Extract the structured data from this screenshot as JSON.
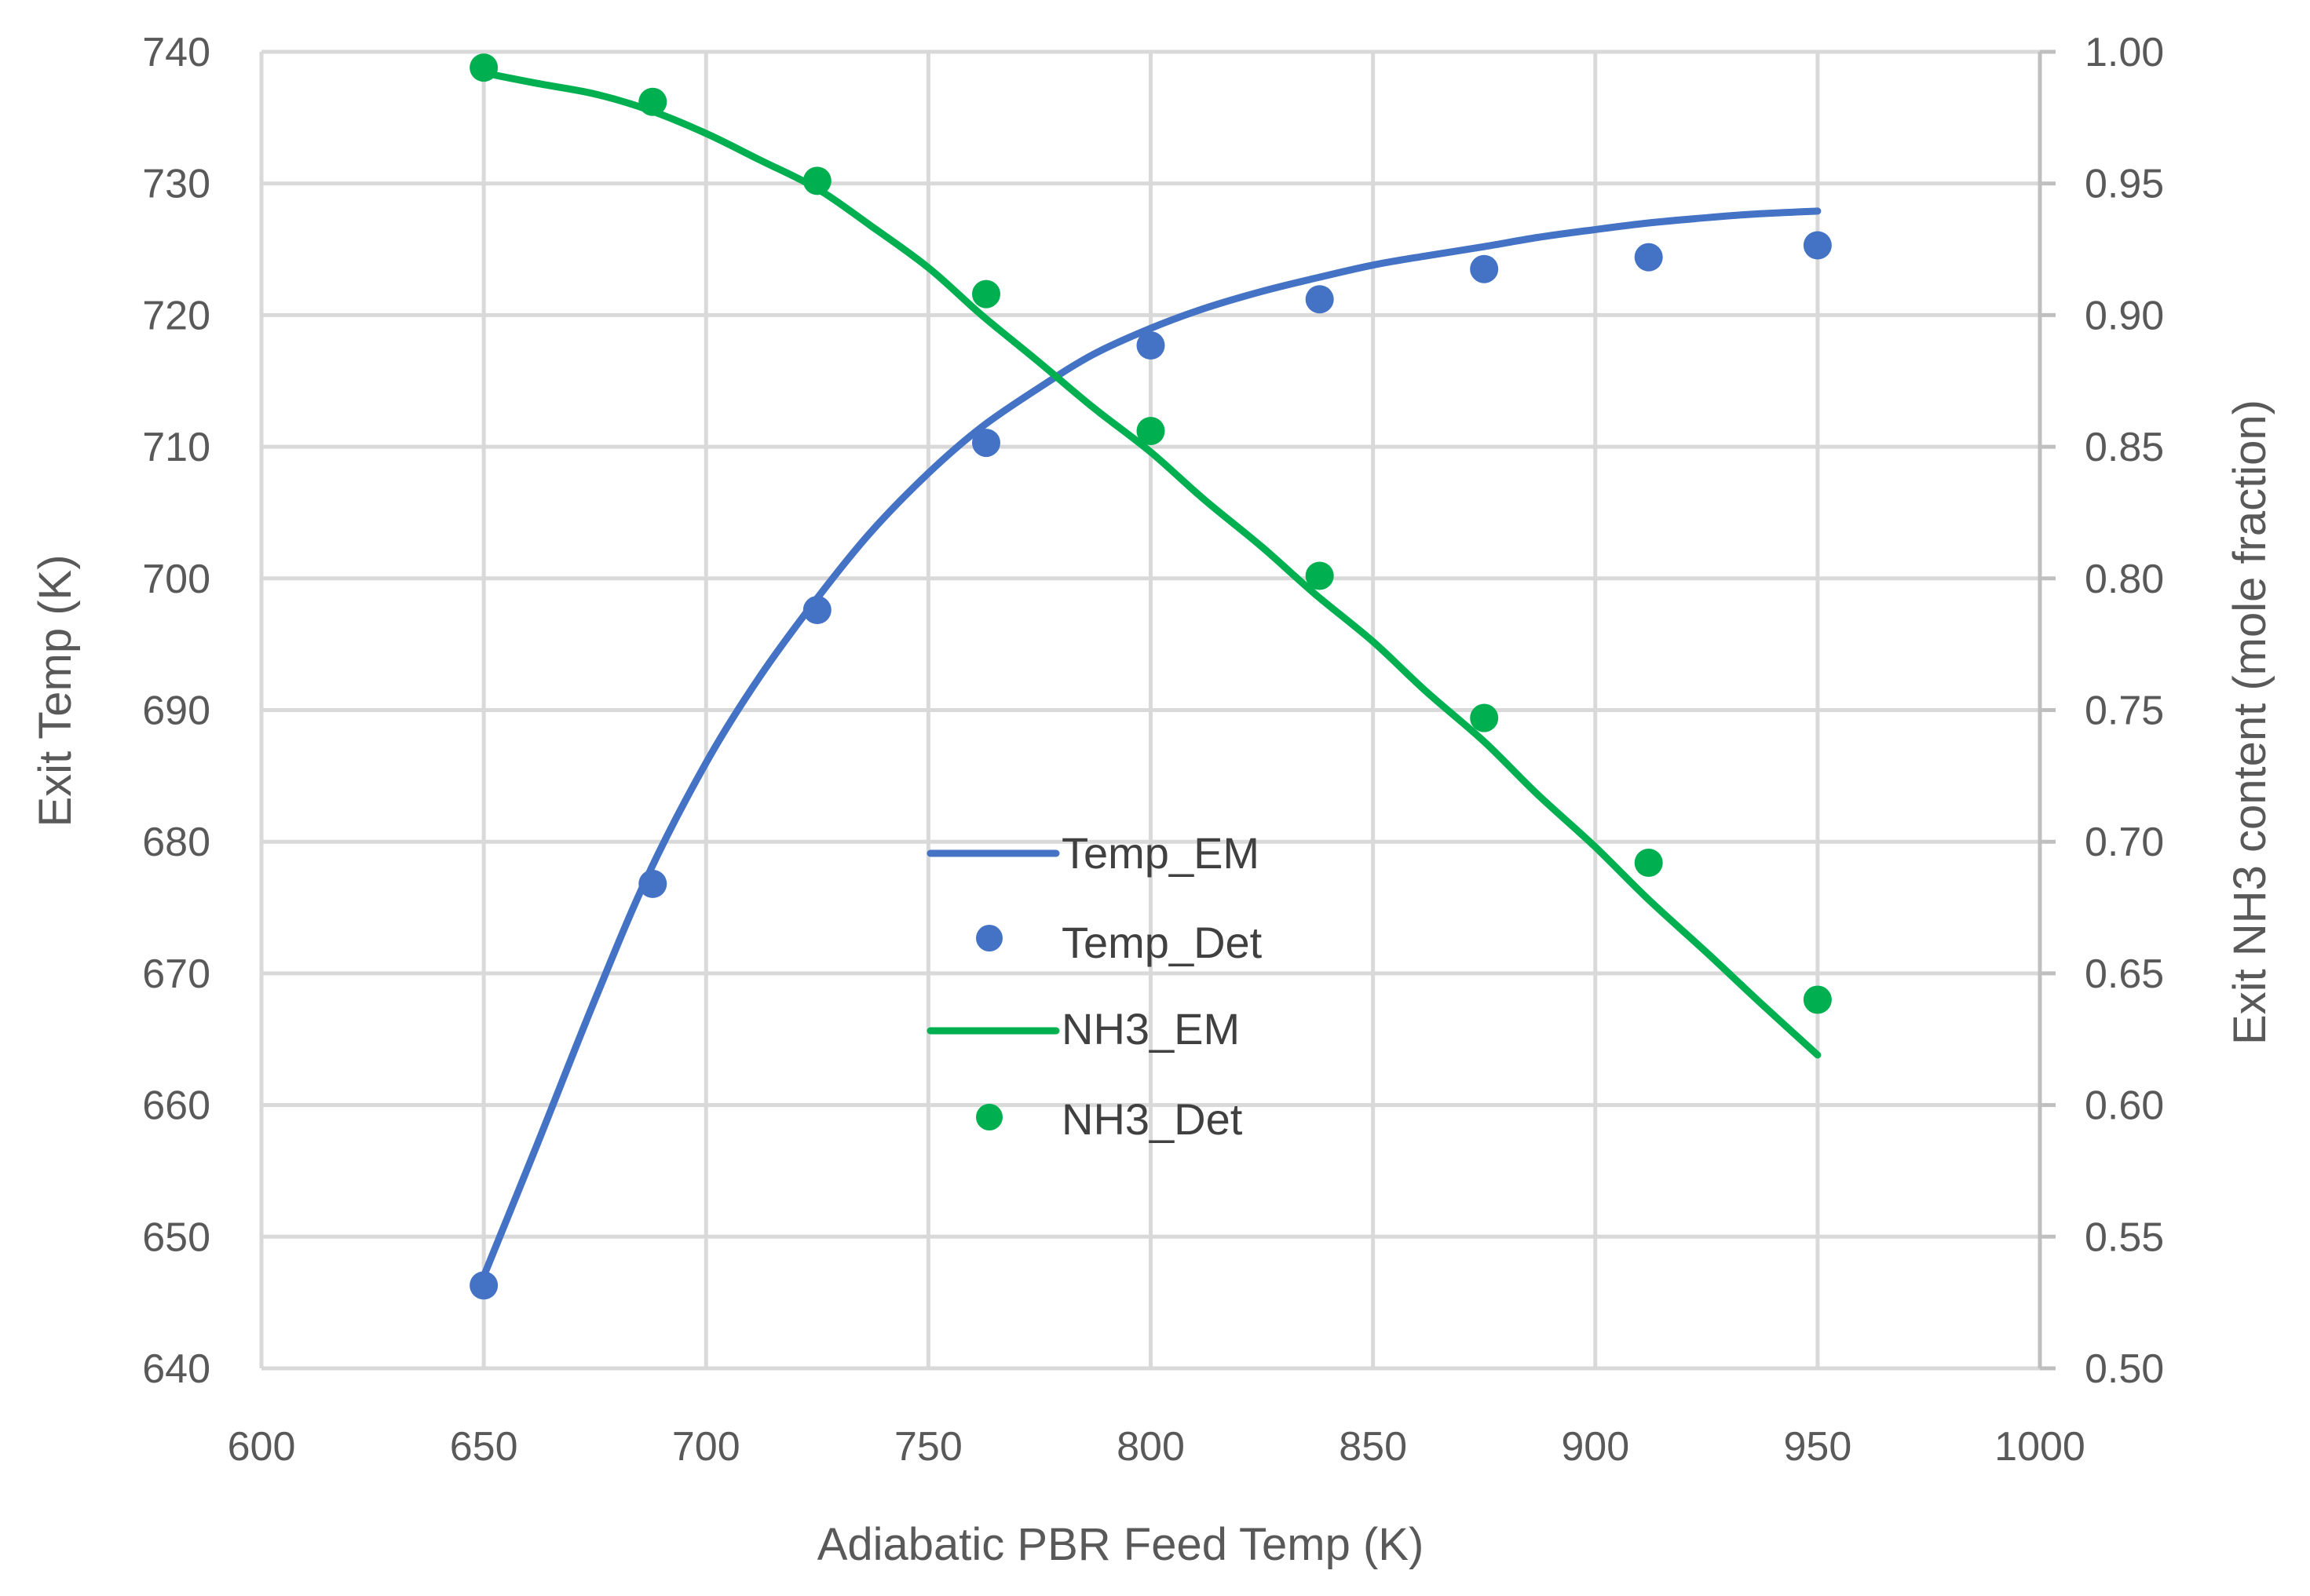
{
  "chart_data": {
    "type": "line",
    "title": "",
    "xlabel": "Adiabatic PBR Feed Temp (K)",
    "ylabel_left": "Exit Temp (K)",
    "ylabel_right": "Exit NH3 content  (mole fraction)",
    "xlim": [
      600,
      1000
    ],
    "ylim_left": [
      640,
      740
    ],
    "ylim_right": [
      0.5,
      1.0
    ],
    "x_ticks": [
      "600",
      "650",
      "700",
      "750",
      "800",
      "850",
      "900",
      "950",
      "1000"
    ],
    "y_left_ticks": [
      "640",
      "650",
      "660",
      "670",
      "680",
      "690",
      "700",
      "710",
      "720",
      "730",
      "740"
    ],
    "y_right_ticks": [
      "0.50",
      "0.55",
      "0.60",
      "0.65",
      "0.70",
      "0.75",
      "0.80",
      "0.85",
      "0.90",
      "0.95",
      "1.00"
    ],
    "grid": true,
    "legend_position": "center",
    "colors": {
      "temp": "#4472c4",
      "nh3": "#00b050",
      "grid": "#d9d9d9",
      "text": "#595959"
    },
    "series": [
      {
        "name": "Temp_EM",
        "kind": "line",
        "axis": "left",
        "color": "#4472c4",
        "x": [
          650,
          662,
          675,
          687,
          700,
          712,
          725,
          737,
          750,
          762,
          775,
          787,
          800,
          812,
          825,
          837,
          850,
          862,
          875,
          887,
          900,
          912,
          925,
          937,
          950
        ],
        "y": [
          647.0,
          657.0,
          668.0,
          677.5,
          686.0,
          692.5,
          698.5,
          703.5,
          708.0,
          711.5,
          714.5,
          717.0,
          719.0,
          720.5,
          721.8,
          722.8,
          723.8,
          724.5,
          725.2,
          725.9,
          726.5,
          727.0,
          727.4,
          727.7,
          727.9
        ]
      },
      {
        "name": "Temp_Det",
        "kind": "scatter",
        "axis": "left",
        "color": "#4472c4",
        "x": [
          650,
          688,
          725,
          763,
          800,
          838,
          875,
          912,
          950
        ],
        "y": [
          646.3,
          676.8,
          697.6,
          710.3,
          717.7,
          721.2,
          723.5,
          724.4,
          725.3
        ]
      },
      {
        "name": "NH3_EM",
        "kind": "line",
        "axis": "right",
        "color": "#00b050",
        "x": [
          650,
          662,
          675,
          687,
          700,
          712,
          725,
          737,
          750,
          762,
          775,
          787,
          800,
          812,
          825,
          837,
          850,
          862,
          875,
          887,
          900,
          912,
          925,
          937,
          950
        ],
        "y": [
          0.992,
          0.988,
          0.984,
          0.978,
          0.969,
          0.959,
          0.948,
          0.934,
          0.918,
          0.9,
          0.882,
          0.865,
          0.848,
          0.83,
          0.812,
          0.794,
          0.776,
          0.757,
          0.738,
          0.718,
          0.698,
          0.678,
          0.658,
          0.639,
          0.619
        ]
      },
      {
        "name": "NH3_Det",
        "kind": "scatter",
        "axis": "right",
        "color": "#00b050",
        "x": [
          650,
          688,
          725,
          763,
          800,
          838,
          875,
          912,
          950
        ],
        "y": [
          0.994,
          0.981,
          0.951,
          0.908,
          0.856,
          0.801,
          0.747,
          0.692,
          0.64
        ]
      }
    ]
  }
}
